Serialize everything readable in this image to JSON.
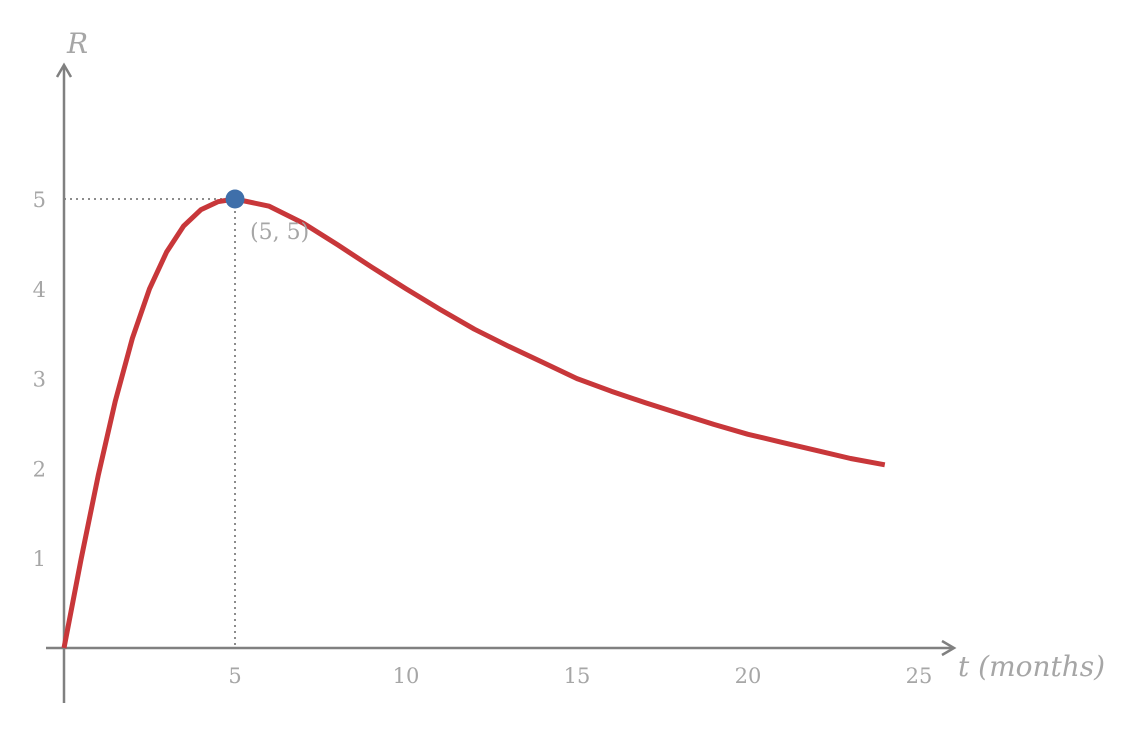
{
  "chart_data": {
    "type": "line",
    "xlabel": "t (months)",
    "ylabel": "R",
    "xlim": [
      0,
      26
    ],
    "ylim": [
      0,
      6.3
    ],
    "x_ticks": [
      5,
      10,
      15,
      20,
      25
    ],
    "y_ticks": [
      1,
      2,
      3,
      4,
      5
    ],
    "grid": false,
    "colors": {
      "curve": "#c8373a",
      "point": "#3f6faa",
      "axis": "#808080",
      "label": "#a6a6a6"
    },
    "series": [
      {
        "x": [
          0,
          0.5,
          1,
          1.5,
          2,
          2.5,
          3,
          3.5,
          4,
          4.5,
          5,
          6,
          7,
          8,
          9,
          10,
          11,
          12,
          13,
          14,
          15,
          16,
          17,
          18,
          19,
          20,
          21,
          22,
          23,
          24
        ],
        "y": [
          0,
          0.99,
          1.92,
          2.75,
          3.45,
          4.0,
          4.41,
          4.7,
          4.88,
          4.97,
          5.0,
          4.92,
          4.73,
          4.49,
          4.24,
          4.0,
          3.77,
          3.55,
          3.36,
          3.18,
          3.0,
          2.86,
          2.73,
          2.61,
          2.49,
          2.38,
          2.29,
          2.2,
          2.11,
          2.04
        ]
      }
    ],
    "highlight": {
      "x": 5,
      "y": 5,
      "label": "(5,  5)"
    }
  }
}
